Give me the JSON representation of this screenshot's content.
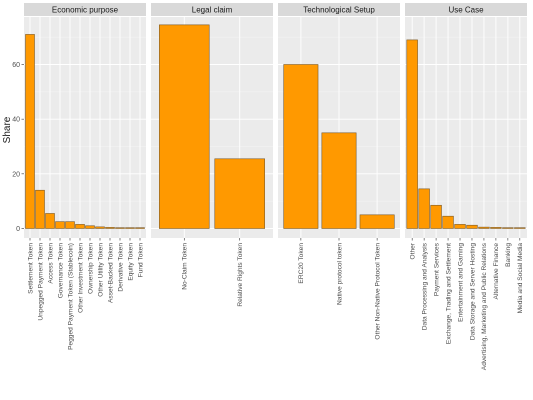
{
  "chart_data": {
    "type": "bar",
    "ylabel": "Share",
    "xlabel": "",
    "ylim": [
      0,
      75
    ],
    "yticks": [
      0,
      20,
      40,
      60
    ],
    "grid": true,
    "bar_color": "#ff9900",
    "panels": [
      {
        "name": "Economic purpose",
        "categories": [
          "Settlement Token",
          "Unpegged Payment Token",
          "Access Token",
          "Governance Token",
          "Pegged Payment Token (Stablecoin)",
          "Other Investment Token",
          "Ownership Token",
          "Other Utility Token",
          "Asset-Backed Token",
          "Derivative Token",
          "Equity Token",
          "Fund Token"
        ],
        "values": [
          71,
          14,
          5.5,
          2.5,
          2.5,
          1.5,
          1.0,
          0.6,
          0.4,
          0.3,
          0.3,
          0.3
        ]
      },
      {
        "name": "Legal claim",
        "categories": [
          "No-Claim Token",
          "Relative Rights Token"
        ],
        "values": [
          74.5,
          25.5
        ]
      },
      {
        "name": "Technological Setup",
        "categories": [
          "ERC20 Token",
          "Native protocol token",
          "Other Non-Native Protocol Token"
        ],
        "values": [
          60,
          35,
          5
        ]
      },
      {
        "name": "Use Case",
        "categories": [
          "Other",
          "Data Processing and Analysis",
          "Payment Services",
          "Exchange, Trading and Settlement",
          "Entertainment and Gaming",
          "Data Storage and Server Hosting",
          "Advertising, Marketing and Public Relations",
          "Alternative Finance",
          "Banking",
          "Media and Social Media"
        ],
        "values": [
          69,
          14.5,
          8.5,
          4.5,
          1.5,
          1.2,
          0.5,
          0.4,
          0.3,
          0.3
        ]
      }
    ]
  }
}
